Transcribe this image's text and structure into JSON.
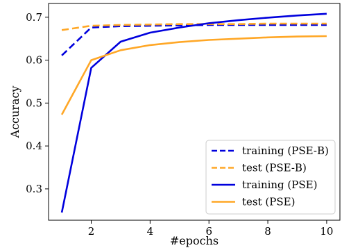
{
  "chart_data": {
    "type": "line",
    "xlabel": "#epochs",
    "ylabel": "Accuracy",
    "xlim": [
      0.55,
      10.45
    ],
    "ylim": [
      0.227,
      0.732
    ],
    "xticks": [
      2,
      4,
      6,
      8,
      10
    ],
    "yticks": [
      0.3,
      0.4,
      0.5,
      0.6,
      0.7
    ],
    "grid": false,
    "legend_position": "lower-right",
    "x": [
      1,
      2,
      3,
      4,
      5,
      6,
      7,
      8,
      9,
      10
    ],
    "series": [
      {
        "name": "training (PSE-B)",
        "color": "#0000dd",
        "dash": "dashed",
        "values": [
          0.611,
          0.676,
          0.679,
          0.68,
          0.681,
          0.682,
          0.682,
          0.682,
          0.682,
          0.682
        ]
      },
      {
        "name": "test (PSE-B)",
        "color": "#ffa726",
        "dash": "dashed",
        "values": [
          0.67,
          0.68,
          0.682,
          0.683,
          0.684,
          0.684,
          0.684,
          0.685,
          0.685,
          0.685
        ]
      },
      {
        "name": "training (PSE)",
        "color": "#0000dd",
        "dash": "solid",
        "values": [
          0.245,
          0.582,
          0.643,
          0.664,
          0.676,
          0.686,
          0.693,
          0.699,
          0.704,
          0.708
        ]
      },
      {
        "name": "test (PSE)",
        "color": "#ffa726",
        "dash": "solid",
        "values": [
          0.473,
          0.6,
          0.623,
          0.635,
          0.642,
          0.647,
          0.65,
          0.653,
          0.655,
          0.656
        ]
      }
    ]
  }
}
